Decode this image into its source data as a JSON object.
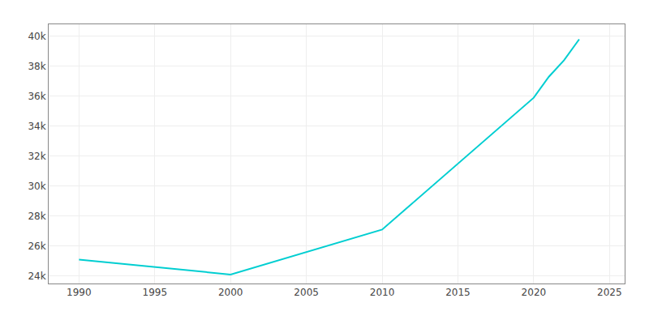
{
  "chart_data": {
    "type": "line",
    "x": [
      1990,
      2000,
      2010,
      2020,
      2021,
      2022,
      2023
    ],
    "values": [
      25100,
      24100,
      27100,
      35900,
      37300,
      38400,
      39800
    ],
    "color": "#00CED1",
    "xlim": [
      1988,
      2026
    ],
    "xticks": [
      1990,
      1995,
      2000,
      2005,
      2010,
      2015,
      2020,
      2025
    ],
    "ylim": [
      23500,
      40800
    ],
    "yticks": [
      {
        "value": 24000,
        "label": "24k"
      },
      {
        "value": 26000,
        "label": "26k"
      },
      {
        "value": 28000,
        "label": "28k"
      },
      {
        "value": 30000,
        "label": "30k"
      },
      {
        "value": 32000,
        "label": "32k"
      },
      {
        "value": 34000,
        "label": "34k"
      },
      {
        "value": 36000,
        "label": "36k"
      },
      {
        "value": 38000,
        "label": "38k"
      },
      {
        "value": 40000,
        "label": "40k"
      }
    ],
    "grid": true
  }
}
